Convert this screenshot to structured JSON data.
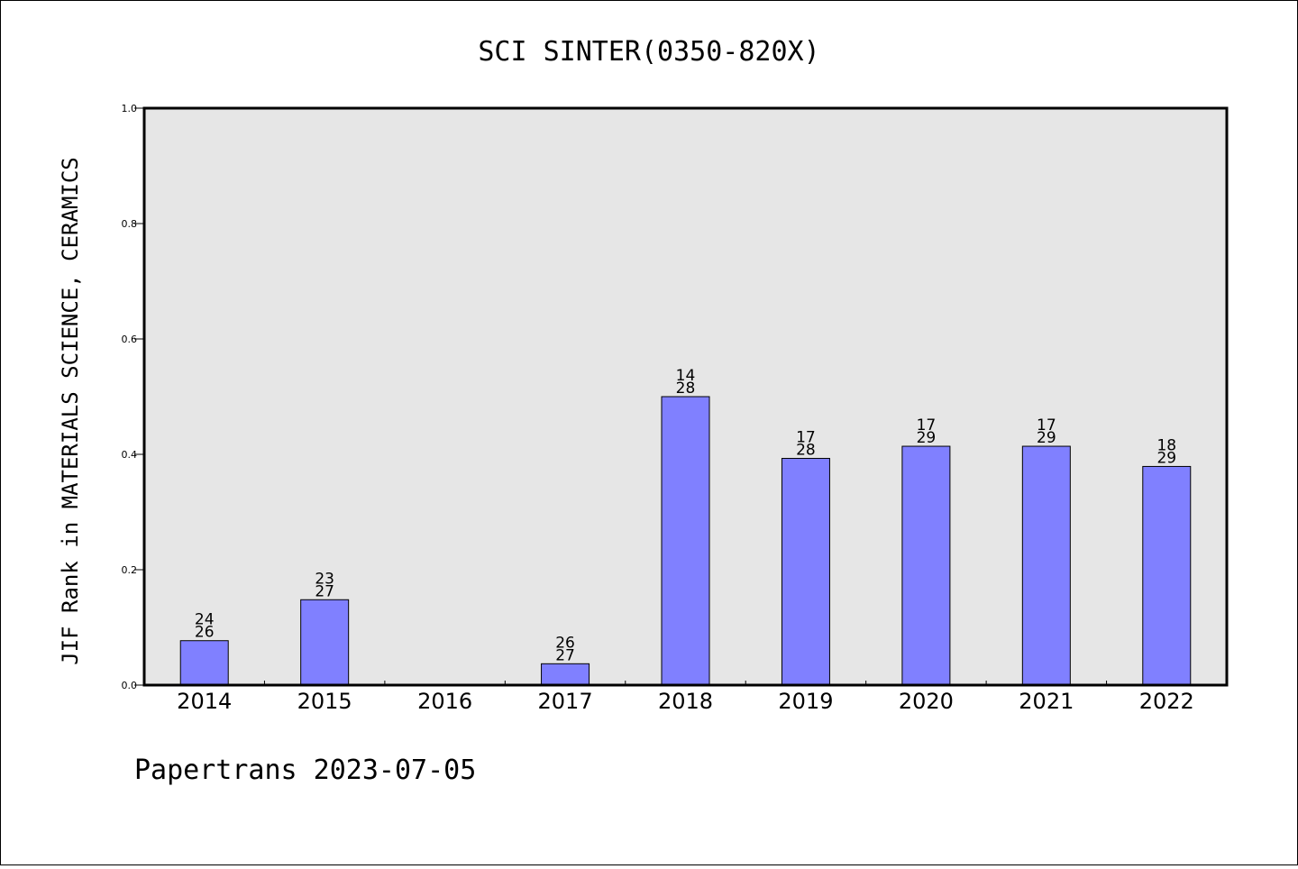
{
  "chart_data": {
    "type": "bar",
    "title": "SCI SINTER(0350-820X)",
    "xlabel": "",
    "ylabel": "JIF Rank in MATERIALS SCIENCE, CERAMICS",
    "ylim": [
      0,
      1.0
    ],
    "yticks": [
      "0.0",
      "0.2",
      "0.4",
      "0.6",
      "0.8",
      "1.0"
    ],
    "grid": false,
    "categories": [
      "2014",
      "2015",
      "2016",
      "2017",
      "2018",
      "2019",
      "2020",
      "2021",
      "2022"
    ],
    "values": [
      0.077,
      0.148,
      null,
      0.037,
      0.5,
      0.393,
      0.414,
      0.414,
      0.379
    ],
    "rank_labels": [
      [
        "24",
        "26"
      ],
      [
        "23",
        "27"
      ],
      null,
      [
        "26",
        "27"
      ],
      [
        "14",
        "28"
      ],
      [
        "17",
        "28"
      ],
      [
        "17",
        "29"
      ],
      [
        "17",
        "29"
      ],
      [
        "18",
        "29"
      ]
    ],
    "colors": {
      "bar": "#8080ff",
      "plot_background": "#e6e6e6"
    }
  },
  "footer": "Papertrans 2023-07-05"
}
